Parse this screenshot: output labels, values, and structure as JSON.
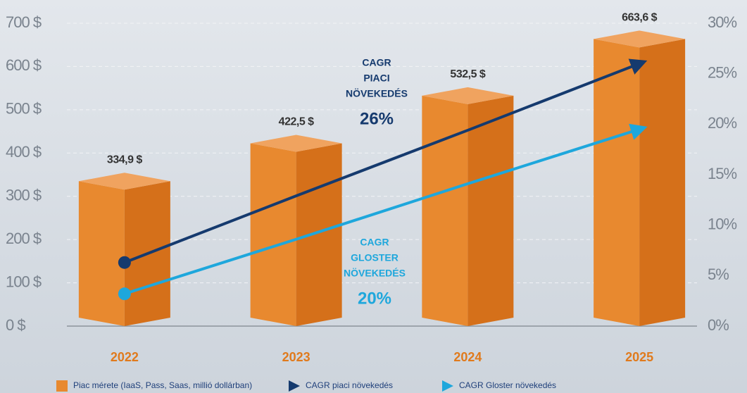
{
  "chart_data": {
    "type": "bar",
    "categories": [
      "2022",
      "2023",
      "2024",
      "2025"
    ],
    "series": [
      {
        "name": "Piac mérete (IaaS, Pass, Saas, millió dollárban)",
        "color": "#e8892f",
        "values": [
          334.9,
          422.5,
          532.5,
          663.6
        ],
        "value_labels": [
          "334,9 $",
          "422,5 $",
          "532,5 $",
          "663,6 $"
        ]
      },
      {
        "name": "CAGR piaci növekedés",
        "type": "line",
        "axis": "y2",
        "color": "#153a6e",
        "values": [
          6.3,
          12.9,
          19.4,
          26
        ]
      },
      {
        "name": "CAGR Gloster növekedés",
        "type": "line",
        "axis": "y2",
        "color": "#1ea7dc",
        "values": [
          3.2,
          8.6,
          14.1,
          19.5
        ]
      }
    ],
    "annotations": [
      {
        "lines": [
          "CAGR",
          "PIACI",
          "NÖVEKEDÉS"
        ],
        "value": "26%",
        "color": "#153a6e"
      },
      {
        "lines": [
          "CAGR",
          "GLOSTER",
          "NÖVEKEDÉS"
        ],
        "value": "20%",
        "color": "#1ea7dc"
      }
    ],
    "ylim": [
      0,
      700
    ],
    "yticks": [
      {
        "value": 0,
        "label": "0 $"
      },
      {
        "value": 100,
        "label": "100 $"
      },
      {
        "value": 200,
        "label": "200 $"
      },
      {
        "value": 300,
        "label": "300 $"
      },
      {
        "value": 400,
        "label": "400 $"
      },
      {
        "value": 500,
        "label": "500 $"
      },
      {
        "value": 600,
        "label": "600 $"
      },
      {
        "value": 700,
        "label": "700 $"
      }
    ],
    "y2lim": [
      0,
      30
    ],
    "y2ticks": [
      {
        "value": 0,
        "label": "0%"
      },
      {
        "value": 5,
        "label": "5%"
      },
      {
        "value": 10,
        "label": "10%"
      },
      {
        "value": 15,
        "label": "15%"
      },
      {
        "value": 20,
        "label": "20%"
      },
      {
        "value": 25,
        "label": "25%"
      },
      {
        "value": 30,
        "label": "30%"
      }
    ],
    "grid": true
  }
}
